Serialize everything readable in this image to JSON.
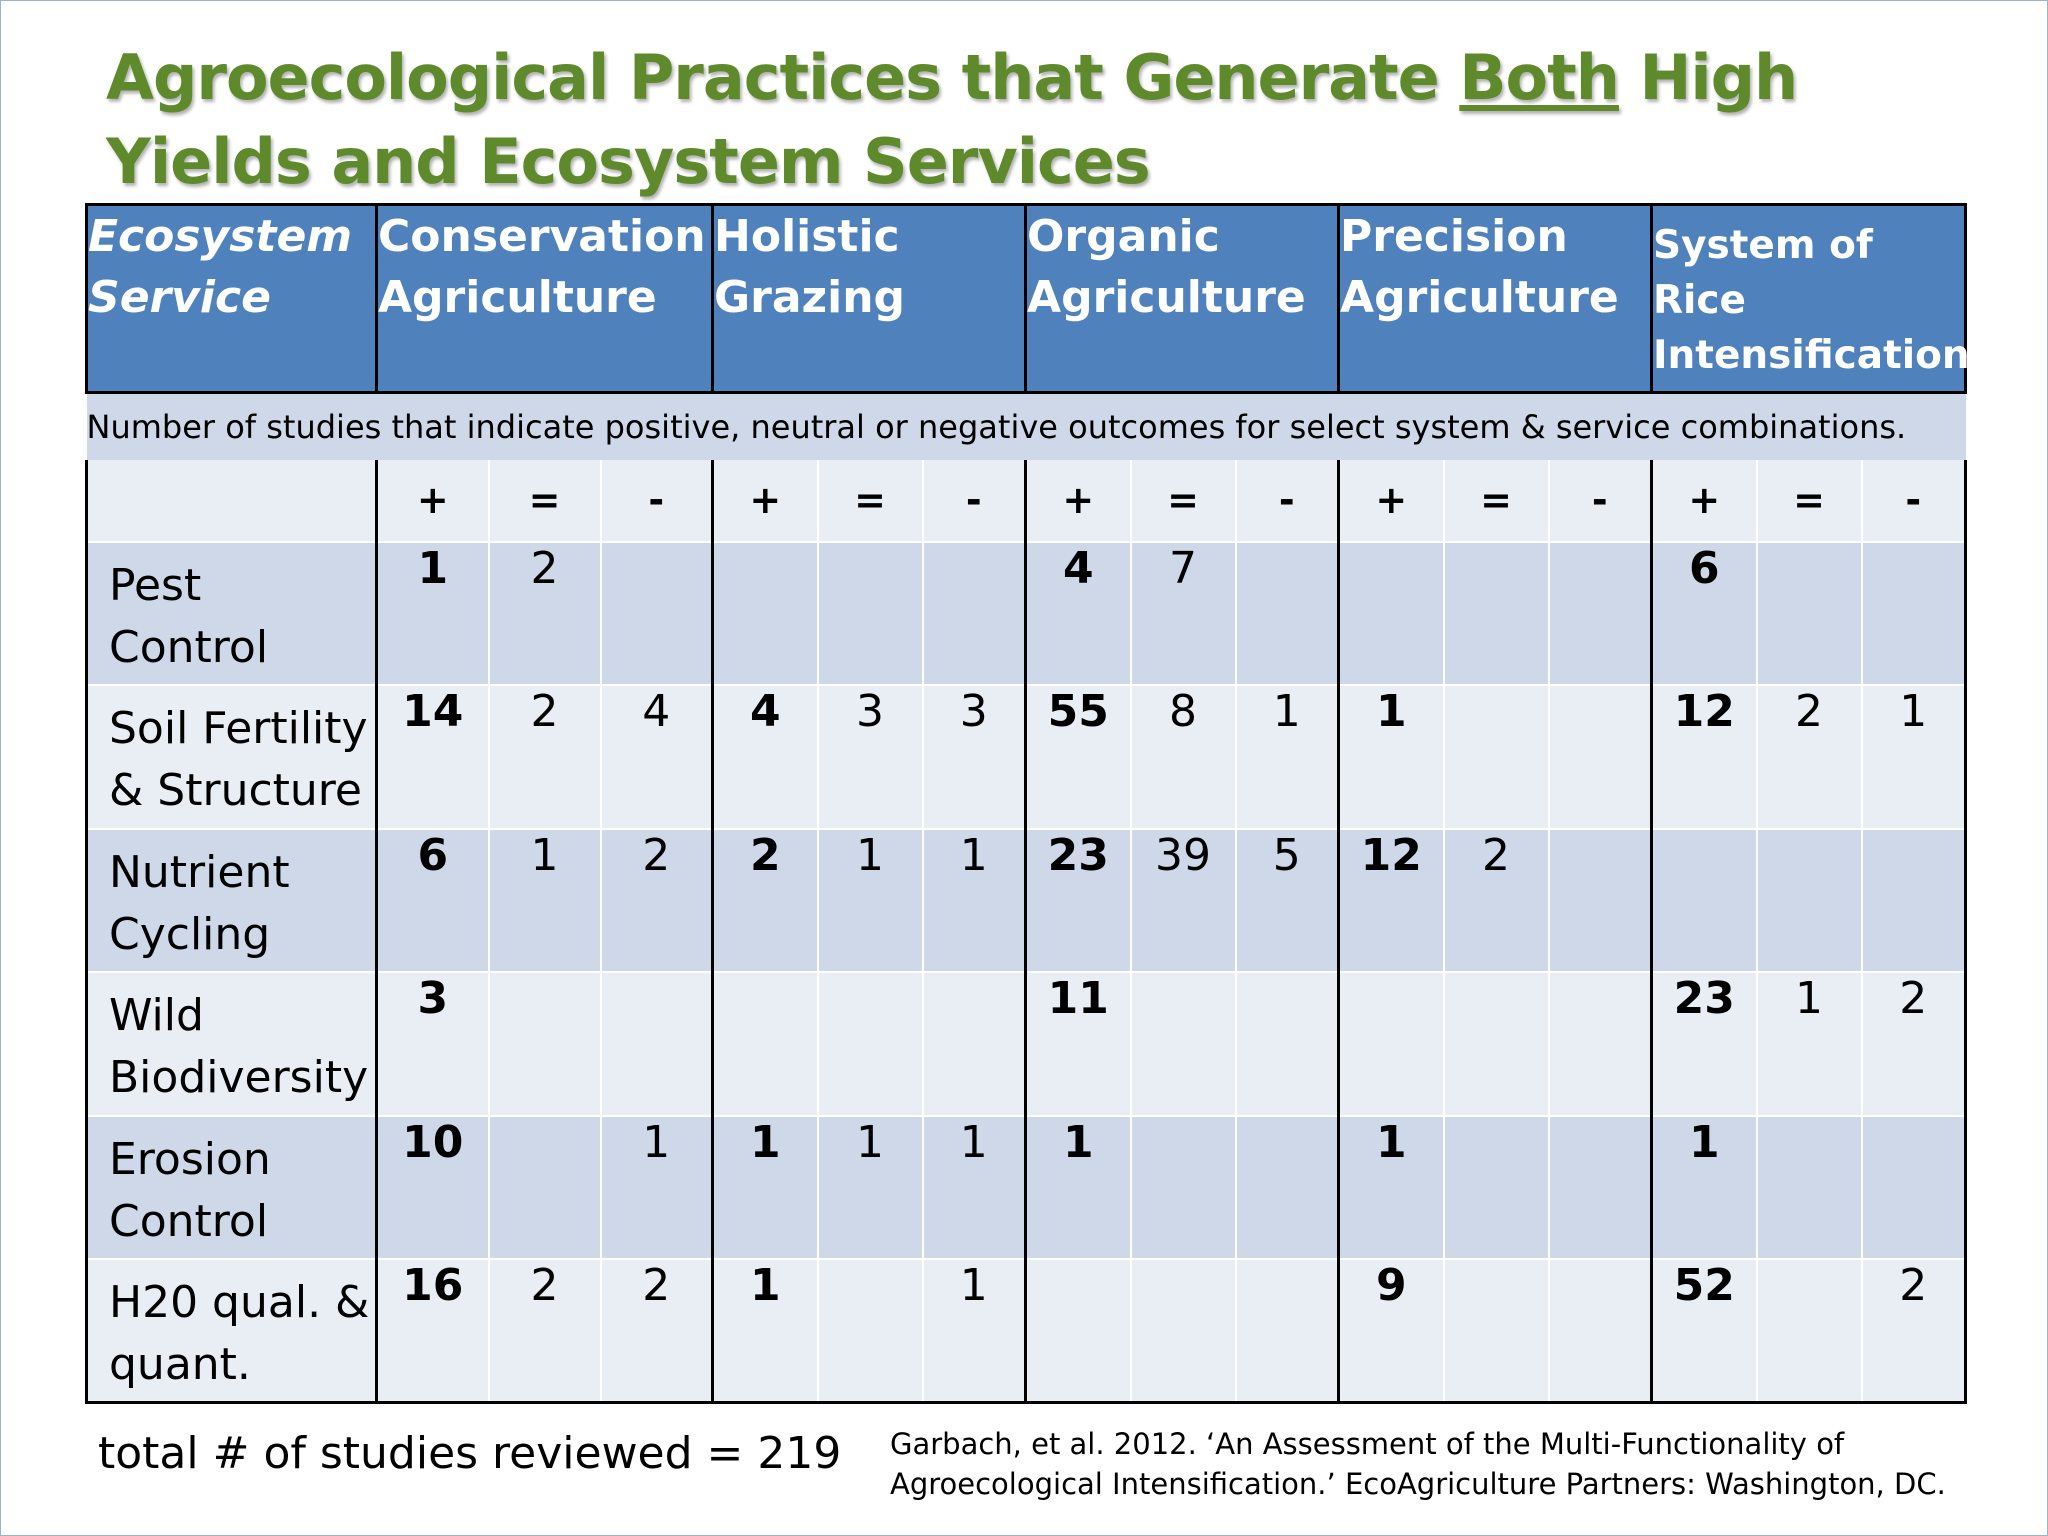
{
  "title": {
    "before": "Agroecological Practices that Generate ",
    "emphasis": "Both",
    "after": " High Yields and Ecosystem Services"
  },
  "table": {
    "first_header": [
      "Ecosystem",
      "Service"
    ],
    "columns": [
      {
        "lines": [
          "Conservation",
          "Agriculture"
        ]
      },
      {
        "lines": [
          "Holistic",
          "Grazing"
        ]
      },
      {
        "lines": [
          "Organic",
          "Agriculture"
        ]
      },
      {
        "lines": [
          "Precision",
          "Agriculture"
        ]
      },
      {
        "lines": [
          "System of",
          "Rice",
          "Intensification"
        ]
      }
    ],
    "note": "Number of studies that indicate positive, neutral or negative outcomes for select system & service combinations.",
    "signs": [
      "+",
      "=",
      "-"
    ],
    "rows": [
      {
        "label": [
          "Pest",
          "Control"
        ],
        "values": [
          [
            "1",
            "2",
            ""
          ],
          [
            "",
            "",
            ""
          ],
          [
            "4",
            "7",
            ""
          ],
          [
            "",
            "",
            ""
          ],
          [
            "6",
            "",
            ""
          ]
        ]
      },
      {
        "label": [
          "Soil Fertility",
          "& Structure"
        ],
        "values": [
          [
            "14",
            "2",
            "4"
          ],
          [
            "4",
            "3",
            "3"
          ],
          [
            "55",
            "8",
            "1"
          ],
          [
            "1",
            "",
            ""
          ],
          [
            "12",
            "2",
            "1"
          ]
        ]
      },
      {
        "label": [
          "Nutrient",
          "Cycling"
        ],
        "values": [
          [
            "6",
            "1",
            "2"
          ],
          [
            "2",
            "1",
            "1"
          ],
          [
            "23",
            "39",
            "5"
          ],
          [
            "12",
            "2",
            ""
          ],
          [
            "",
            "",
            ""
          ]
        ]
      },
      {
        "label": [
          "Wild",
          "Biodiversity"
        ],
        "values": [
          [
            "3",
            "",
            ""
          ],
          [
            "",
            "",
            ""
          ],
          [
            "11",
            "",
            ""
          ],
          [
            "",
            "",
            ""
          ],
          [
            "23",
            "1",
            "2"
          ]
        ]
      },
      {
        "label": [
          "Erosion",
          "Control"
        ],
        "values": [
          [
            "10",
            "",
            "1"
          ],
          [
            "1",
            "1",
            "1"
          ],
          [
            "1",
            "",
            ""
          ],
          [
            "1",
            "",
            ""
          ],
          [
            "1",
            "",
            ""
          ]
        ]
      },
      {
        "label": [
          "H20 qual. &",
          "quant."
        ],
        "values": [
          [
            "16",
            "2",
            "2"
          ],
          [
            "1",
            "",
            "1"
          ],
          [
            "",
            "",
            ""
          ],
          [
            "9",
            "",
            ""
          ],
          [
            "52",
            "",
            "2"
          ]
        ]
      }
    ]
  },
  "total": "total # of studies reviewed = 219",
  "citation": [
    "Garbach, et al. 2012. ‘An Assessment of the Multi-Functionality of",
    "Agroecological Intensification.’ EcoAgriculture Partners: Washington, DC."
  ]
}
